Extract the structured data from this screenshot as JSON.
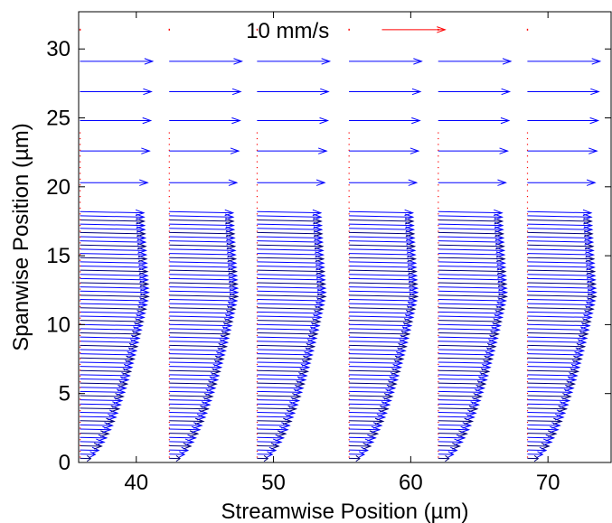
{
  "chart_data": {
    "type": "quiver",
    "xlabel": "Streamwise Position (µm)",
    "ylabel": "Spanwise Position (µm)",
    "xlim": [
      35.8,
      74.6
    ],
    "ylim": [
      0,
      32.7
    ],
    "xticks": [
      40,
      50,
      60,
      70
    ],
    "yticks": [
      0,
      5,
      10,
      15,
      20,
      25,
      30
    ],
    "grid": false,
    "reference_vector": {
      "label": "10 mm/s",
      "x": 57.9,
      "y": 31.4,
      "u_mm_per_s": 10,
      "length_um": 4.6
    },
    "vector_scale_um_per_mm_s": 0.46,
    "station_x": [
      35.9,
      42.4,
      48.8,
      55.5,
      62.0,
      68.5
    ],
    "profile": {
      "description_units": "y in µm, streamwise velocity in mm/s",
      "dense_y_range": [
        0.3,
        18.2
      ],
      "dense_count": 60,
      "profile_max_velocity": 10.9,
      "profile_velocity_at_top": 10.1,
      "profile_shape_exponent": 0.5
    },
    "sparse_rows": [
      {
        "y": 20.3,
        "u": 10.7
      },
      {
        "y": 22.6,
        "u": 11.0
      },
      {
        "y": 24.8,
        "u": 11.2
      },
      {
        "y": 26.9,
        "u": 11.3
      },
      {
        "y": 29.1,
        "u": 11.5
      }
    ],
    "marker_row_y": 31.4,
    "colors": {
      "vector": "#0000ff",
      "reference_vector": "#ff0000",
      "zero_marker": "#ff0000",
      "axis": "#000000"
    }
  }
}
